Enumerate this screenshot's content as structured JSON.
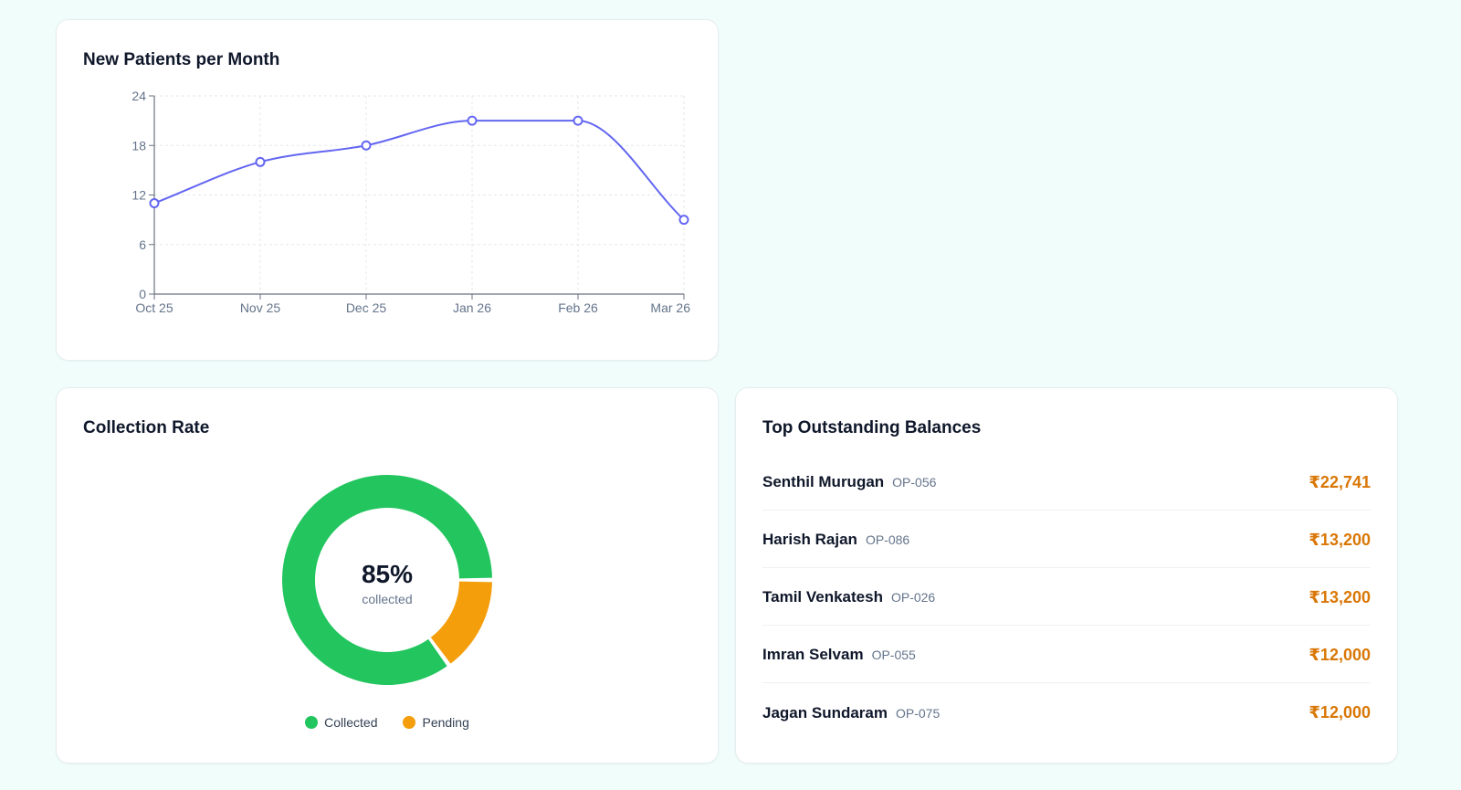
{
  "line_card": {
    "title": "New Patients per Month"
  },
  "donut_card": {
    "title": "Collection Rate",
    "center_value": "85%",
    "center_label": "collected",
    "legend": [
      {
        "label": "Collected",
        "color": "#22c55e"
      },
      {
        "label": "Pending",
        "color": "#f59e0b"
      }
    ]
  },
  "balances_card": {
    "title": "Top Outstanding Balances",
    "rows": [
      {
        "name": "Senthil Murugan",
        "id": "OP-056",
        "amount": "₹22,741"
      },
      {
        "name": "Harish Rajan",
        "id": "OP-086",
        "amount": "₹13,200"
      },
      {
        "name": "Tamil Venkatesh",
        "id": "OP-026",
        "amount": "₹13,200"
      },
      {
        "name": "Imran Selvam",
        "id": "OP-055",
        "amount": "₹12,000"
      },
      {
        "name": "Jagan Sundaram",
        "id": "OP-075",
        "amount": "₹12,000"
      }
    ]
  },
  "chart_data": [
    {
      "type": "line",
      "title": "New Patients per Month",
      "categories": [
        "Oct 25",
        "Nov 25",
        "Dec 25",
        "Jan 26",
        "Feb 26",
        "Mar 26"
      ],
      "series": [
        {
          "values": [
            11,
            16,
            18,
            21,
            21,
            9
          ],
          "color": "#6366f1"
        }
      ],
      "yticks": [
        "0",
        "6",
        "12",
        "18",
        "24"
      ],
      "ylim": [
        0,
        24
      ],
      "grid": true,
      "curve": "smooth"
    },
    {
      "type": "pie",
      "title": "Collection Rate",
      "donut": true,
      "labels": [
        "Collected",
        "Pending"
      ],
      "values": [
        85,
        15
      ],
      "colors": [
        "#22c55e",
        "#f59e0b"
      ]
    }
  ]
}
